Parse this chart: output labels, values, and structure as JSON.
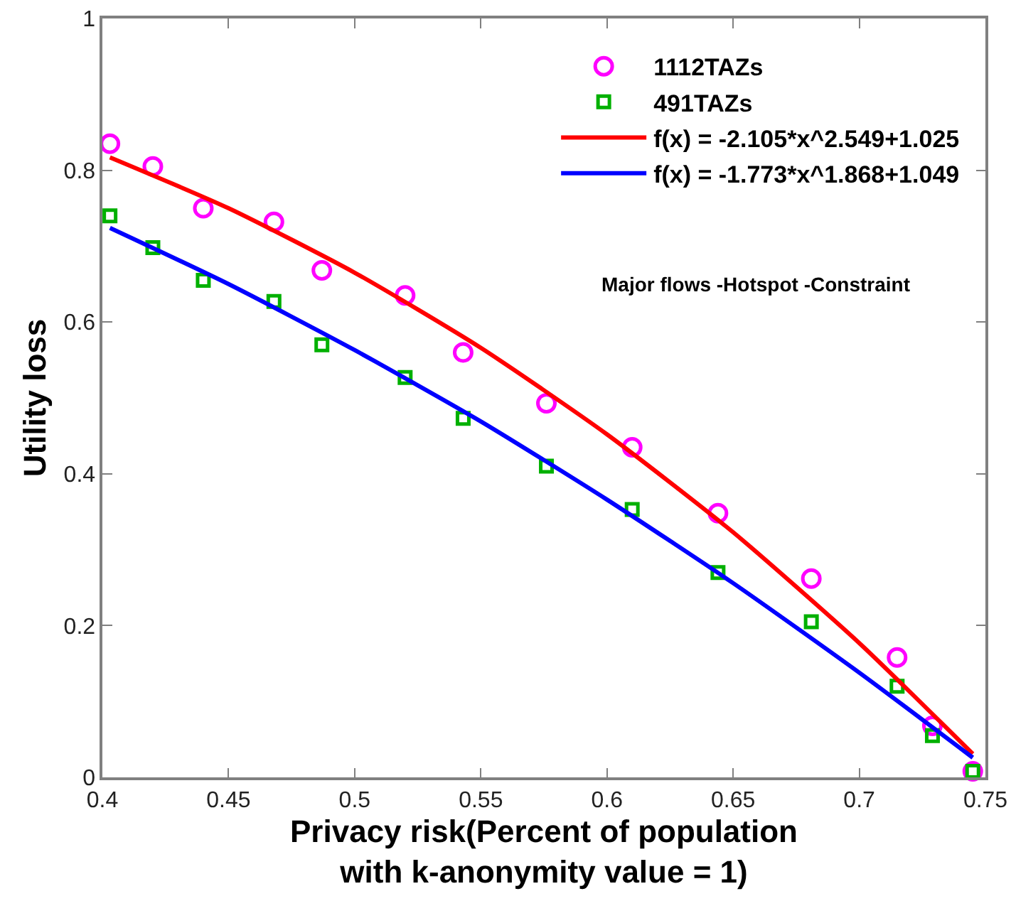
{
  "chart_data": {
    "type": "scatter",
    "xlabel": "Privacy risk(Percent of population\nwith k-anonymity value = 1)",
    "ylabel": "Utility loss",
    "x": [
      0.403,
      0.42,
      0.44,
      0.468,
      0.487,
      0.52,
      0.543,
      0.576,
      0.61,
      0.644,
      0.681,
      0.715,
      0.729,
      0.745
    ],
    "series": [
      {
        "name": "1112TAZs",
        "type": "scatter",
        "marker": "circle",
        "color": "#ff00ff",
        "values": [
          0.835,
          0.805,
          0.75,
          0.732,
          0.668,
          0.635,
          0.56,
          0.493,
          0.435,
          0.348,
          0.262,
          0.158,
          0.068,
          0.008
        ]
      },
      {
        "name": "491TAZs",
        "type": "scatter",
        "marker": "square",
        "color": "#00b000",
        "values": [
          0.74,
          0.698,
          0.655,
          0.627,
          0.57,
          0.527,
          0.473,
          0.41,
          0.353,
          0.27,
          0.205,
          0.12,
          0.055,
          0.008
        ]
      },
      {
        "name": "f(x) = -2.105*x^2.549+1.025",
        "type": "line",
        "marker": "none",
        "color": "#ff0000",
        "x": [
          0.403,
          0.45,
          0.5,
          0.55,
          0.6,
          0.65,
          0.7,
          0.745
        ],
        "values": [
          0.817,
          0.75,
          0.665,
          0.566,
          0.452,
          0.323,
          0.177,
          0.031
        ]
      },
      {
        "name": "f(x) = -1.773*x^1.868+1.049",
        "type": "line",
        "marker": "none",
        "color": "#0000ff",
        "x": [
          0.403,
          0.45,
          0.5,
          0.55,
          0.6,
          0.65,
          0.7,
          0.745
        ],
        "values": [
          0.724,
          0.65,
          0.563,
          0.469,
          0.366,
          0.256,
          0.138,
          0.026
        ]
      }
    ],
    "annotations": [
      "Major flows -Hotspot -Constraint"
    ],
    "xlim": [
      0.4,
      0.75
    ],
    "xticks": [
      0.4,
      0.45,
      0.5,
      0.55,
      0.6,
      0.65,
      0.7,
      0.75
    ],
    "ylim": [
      0,
      1
    ],
    "yticks": [
      0,
      0.2,
      0.4,
      0.6,
      0.8,
      1
    ],
    "grid": false,
    "legend": "top right"
  }
}
